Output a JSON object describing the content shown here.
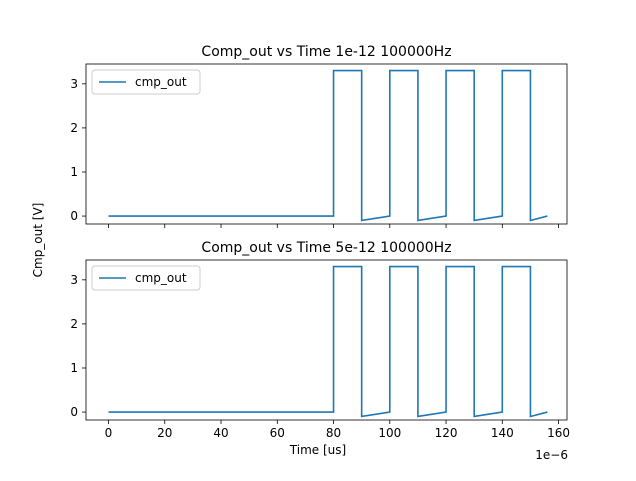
{
  "figure": {
    "ylabel": "Cmp_out [V]",
    "xlabel": "Time [us]",
    "x_offset_text": "1e−6"
  },
  "chart_data": [
    {
      "type": "line",
      "title": "Comp_out vs Time 1e-12 100000Hz",
      "xlim": [
        -8e-06,
        0.000163
      ],
      "ylim": [
        -0.18,
        3.45
      ],
      "xticks": [
        0,
        2e-05,
        4e-05,
        6e-05,
        8e-05,
        0.0001,
        0.00012,
        0.00014,
        0.00016
      ],
      "xtick_labels": [
        "",
        "",
        "",
        "",
        "",
        "",
        "",
        "",
        ""
      ],
      "yticks": [
        0,
        1,
        2,
        3
      ],
      "ytick_labels": [
        "0",
        "1",
        "2",
        "3"
      ],
      "grid": false,
      "legend": {
        "position": "top-left",
        "entries": [
          "cmp_out"
        ]
      },
      "series": [
        {
          "name": "cmp_out",
          "color": "#1f77b4",
          "x": [
            0,
            8e-05,
            8e-05,
            9e-05,
            9e-05,
            0.0001,
            0.0001,
            0.00011,
            0.00011,
            0.00012,
            0.00012,
            0.00013,
            0.00013,
            0.00014,
            0.00014,
            0.00015,
            0.00015,
            0.000156
          ],
          "y": [
            0,
            0,
            3.3,
            3.3,
            -0.1,
            0,
            3.3,
            3.3,
            -0.1,
            0,
            3.3,
            3.3,
            -0.1,
            0,
            3.3,
            3.3,
            -0.1,
            0
          ]
        }
      ]
    },
    {
      "type": "line",
      "title": "Comp_out vs Time 5e-12 100000Hz",
      "xlim": [
        -8e-06,
        0.000163
      ],
      "ylim": [
        -0.18,
        3.45
      ],
      "xticks": [
        0,
        2e-05,
        4e-05,
        6e-05,
        8e-05,
        0.0001,
        0.00012,
        0.00014,
        0.00016
      ],
      "xtick_labels": [
        "0",
        "20",
        "40",
        "60",
        "80",
        "100",
        "120",
        "140",
        "160"
      ],
      "yticks": [
        0,
        1,
        2,
        3
      ],
      "ytick_labels": [
        "0",
        "1",
        "2",
        "3"
      ],
      "grid": false,
      "legend": {
        "position": "top-left",
        "entries": [
          "cmp_out"
        ]
      },
      "series": [
        {
          "name": "cmp_out",
          "color": "#1f77b4",
          "x": [
            0,
            8e-05,
            8e-05,
            9e-05,
            9e-05,
            0.0001,
            0.0001,
            0.00011,
            0.00011,
            0.00012,
            0.00012,
            0.00013,
            0.00013,
            0.00014,
            0.00014,
            0.00015,
            0.00015,
            0.000156
          ],
          "y": [
            0,
            0,
            3.3,
            3.3,
            -0.1,
            0,
            3.3,
            3.3,
            -0.1,
            0,
            3.3,
            3.3,
            -0.1,
            0,
            3.3,
            3.3,
            -0.1,
            0
          ]
        }
      ]
    }
  ]
}
